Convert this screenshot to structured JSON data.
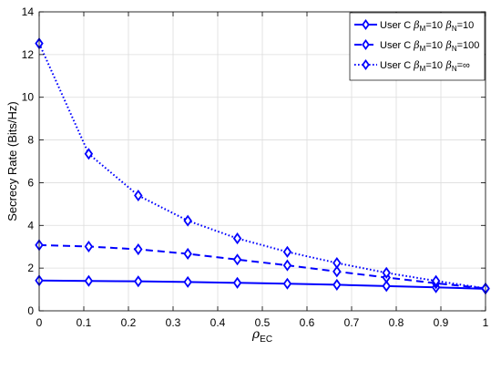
{
  "chart_data": {
    "type": "line",
    "xlabel": "ρ",
    "xlabel_sub": "EC",
    "ylabel": "Secrecy Rate (Bits/Hz)",
    "xlim": [
      0,
      1
    ],
    "ylim": [
      0,
      14
    ],
    "xticks": [
      "0",
      "0.1",
      "0.2",
      "0.3",
      "0.4",
      "0.5",
      "0.6",
      "0.7",
      "0.8",
      "0.9",
      "1"
    ],
    "yticks": [
      "0",
      "2",
      "4",
      "6",
      "8",
      "10",
      "12",
      "14"
    ],
    "grid": true,
    "legend_position": "top-right",
    "x": [
      0,
      0.111,
      0.222,
      0.333,
      0.444,
      0.556,
      0.667,
      0.778,
      0.889,
      1.0
    ],
    "series": [
      {
        "legend_prefix": "User C ",
        "legend_beta_m": "=10",
        "legend_beta_n": "=10",
        "name": "User C βM=10 βN=10",
        "line_style": "solid",
        "color": "#0000ff",
        "values": [
          1.42,
          1.4,
          1.38,
          1.35,
          1.31,
          1.27,
          1.22,
          1.16,
          1.1,
          1.03
        ]
      },
      {
        "legend_prefix": "User C ",
        "legend_beta_m": "=10",
        "legend_beta_n": "=100",
        "name": "User C βM=10 βN=100",
        "line_style": "dashed",
        "color": "#0000ff",
        "values": [
          3.08,
          3.01,
          2.88,
          2.67,
          2.4,
          2.13,
          1.84,
          1.56,
          1.29,
          1.05
        ]
      },
      {
        "legend_prefix": "User C ",
        "legend_beta_m": "=10",
        "legend_beta_n": "=∞",
        "name": "User C βM=10 βN=∞",
        "line_style": "dotted",
        "color": "#0000ff",
        "values": [
          12.52,
          7.35,
          5.4,
          4.22,
          3.39,
          2.76,
          2.24,
          1.78,
          1.4,
          1.05
        ]
      }
    ]
  }
}
